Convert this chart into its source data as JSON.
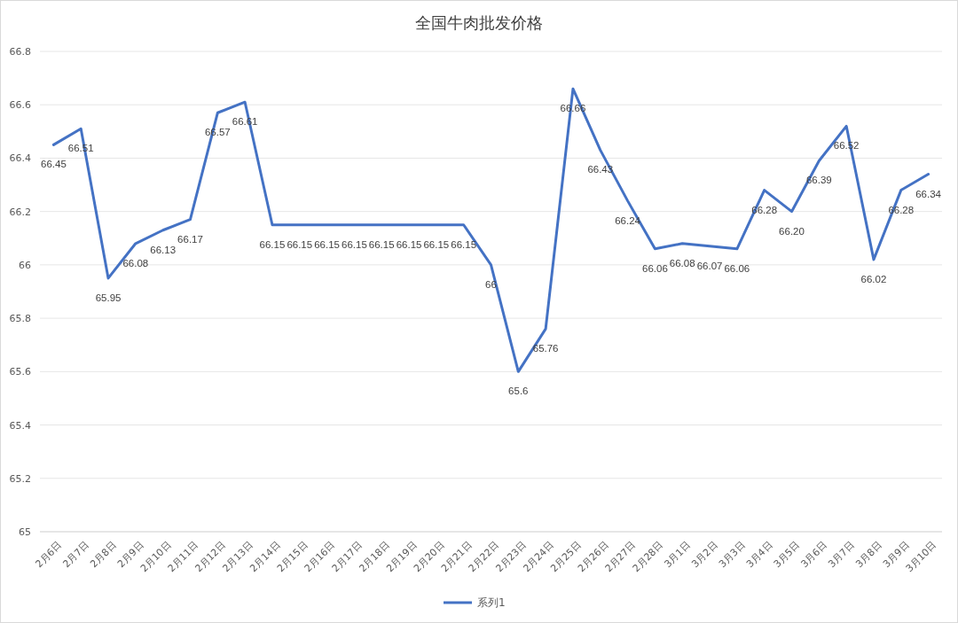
{
  "chart_data": {
    "type": "line",
    "title": "全国牛肉批发价格",
    "categories": [
      "2月6日",
      "2月7日",
      "2月8日",
      "2月9日",
      "2月10日",
      "2月11日",
      "2月12日",
      "2月13日",
      "2月14日",
      "2月15日",
      "2月16日",
      "2月17日",
      "2月18日",
      "2月19日",
      "2月20日",
      "2月21日",
      "2月22日",
      "2月23日",
      "2月24日",
      "2月25日",
      "2月26日",
      "2月27日",
      "2月28日",
      "3月1日",
      "3月2日",
      "3月3日",
      "3月4日",
      "3月5日",
      "3月6日",
      "3月7日",
      "3月8日",
      "3月9日",
      "3月10日"
    ],
    "series": [
      {
        "name": "系列1",
        "color": "#4472c4",
        "values": [
          66.45,
          66.51,
          65.95,
          66.08,
          66.13,
          66.17,
          66.57,
          66.61,
          66.15,
          66.15,
          66.15,
          66.15,
          66.15,
          66.15,
          66.15,
          66.15,
          66,
          65.6,
          65.76,
          66.66,
          66.43,
          66.24,
          66.06,
          66.08,
          66.07,
          66.06,
          66.28,
          66.2,
          66.39,
          66.52,
          66.02,
          66.28,
          66.34
        ],
        "value_labels": [
          "66.45",
          "66.51",
          "65.95",
          "66.08",
          "66.13",
          "66.17",
          "66.57",
          "66.61",
          "66.15",
          "66.15",
          "66.15",
          "66.15",
          "66.15",
          "66.15",
          "66.15",
          "66.15",
          "66",
          "65.6",
          "65.76",
          "66.66",
          "66.43",
          "66.24",
          "66.06",
          "66.08",
          "66.07",
          "66.06",
          "66.28",
          "66.20",
          "66.39",
          "66.52",
          "66.02",
          "66.28",
          "66.34"
        ]
      }
    ],
    "ylim": [
      65,
      66.8
    ],
    "yticks": [
      65,
      65.2,
      65.4,
      65.6,
      65.8,
      66,
      66.2,
      66.4,
      66.6,
      66.8
    ],
    "grid": "y",
    "legend": "bottom",
    "marker": "none",
    "line_style": "solid"
  }
}
